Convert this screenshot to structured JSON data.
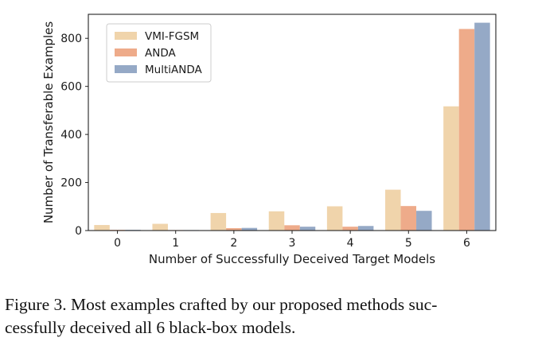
{
  "chart_data": {
    "type": "bar",
    "title": "",
    "xlabel": "Number of Successfully Deceived Target Models",
    "ylabel": "Number of Transferable Examples",
    "categories": [
      "0",
      "1",
      "2",
      "3",
      "4",
      "5",
      "6"
    ],
    "ylim": [
      0,
      900
    ],
    "yticks": [
      0,
      200,
      400,
      600,
      800
    ],
    "legend_position": "top-left",
    "series": [
      {
        "name": "VMI-FGSM",
        "color": "#f0d4ab",
        "values": [
          23,
          28,
          73,
          80,
          101,
          170,
          517
        ]
      },
      {
        "name": "ANDA",
        "color": "#eeab8a",
        "values": [
          3,
          2,
          10,
          22,
          16,
          102,
          839
        ]
      },
      {
        "name": "MultiANDA",
        "color": "#95a9c6",
        "values": [
          3,
          2,
          11,
          16,
          19,
          82,
          865
        ]
      }
    ]
  },
  "caption": {
    "line1": "Figure 3.  Most examples crafted by our proposed methods suc-",
    "line2": "cessfully deceived all 6 black-box models."
  }
}
